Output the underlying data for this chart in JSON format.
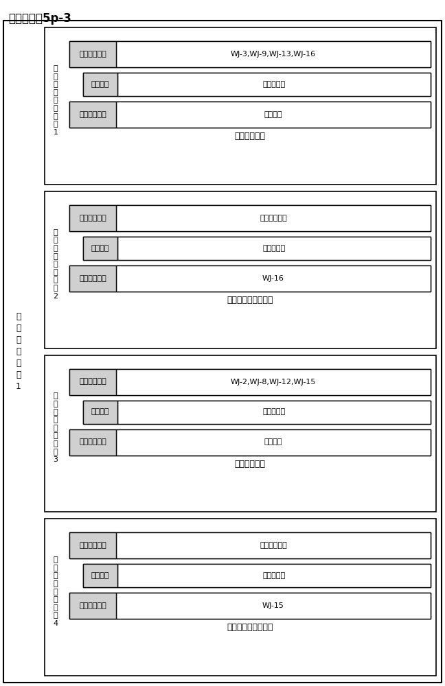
{
  "title": "配置流程图5p-3",
  "outer_label": "可\n重\n构\n阵\n列\n块\n1",
  "blocks": [
    {
      "row_label": "可\n重\n构\n阵\n列\n运\n算\n行\n1",
      "input_label": "数据输入单元",
      "input_value": "WJ-3,WJ-9,WJ-13,WJ-16",
      "op_label": "运算单元",
      "op_value": "异或，移位",
      "output_label": "数据输出单元",
      "output_value": "中间数据",
      "bottom_text": "输出到下一行"
    },
    {
      "row_label": "可\n重\n构\n阵\n列\n运\n算\n行\n2",
      "input_label": "数据输入单元",
      "input_value": "上行中间数据",
      "op_label": "运算单元",
      "op_value": "异或，移位",
      "output_label": "数据输出单元",
      "output_value": "WJ-16",
      "bottom_text": "输出到通用寄存器堆"
    },
    {
      "row_label": "可\n重\n构\n阵\n列\n运\n算\n行\n3",
      "input_label": "数据输入单元",
      "input_value": "WJ-2,WJ-8,WJ-12,WJ-15",
      "op_label": "运算单元",
      "op_value": "异或，移位",
      "output_label": "数据输出单元",
      "output_value": "中间数据",
      "bottom_text": "输出到下一行"
    },
    {
      "row_label": "可\n重\n构\n阵\n列\n运\n算\n行\n4",
      "input_label": "数据输入单元",
      "input_value": "上行中间数据",
      "op_label": "运算单元",
      "op_value": "异或，移位",
      "output_label": "数据输出单元",
      "output_value": "WJ-15",
      "bottom_text": "输出到通用寄存器堆"
    }
  ],
  "bg_color": "#ffffff",
  "gray_fill": "#d0d0d0",
  "font_size_title": 12,
  "font_size_outer_label": 9,
  "font_size_row_label": 8,
  "font_size_label": 8,
  "font_size_content": 8,
  "font_size_bottom": 9
}
